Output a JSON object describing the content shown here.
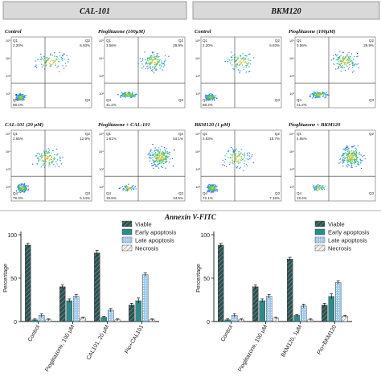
{
  "header": {
    "group1": "CAL-101",
    "group2": "BKM120"
  },
  "flow_panels": [
    {
      "title": "Control",
      "q1": "2.20%",
      "q2": "6.93%",
      "q3": "",
      "q4": "88.4%",
      "density": "viable"
    },
    {
      "title": "Pioglitazone (100μM)",
      "q1": "3.56%",
      "q2": "29.9%",
      "q3": "",
      "q4": "41.2%",
      "density": "mixed"
    },
    {
      "title": "Control",
      "q1": "2.20%",
      "q2": "6.93%",
      "q3": "",
      "q4": "88.4%",
      "density": "viable"
    },
    {
      "title": "Pioglitazone (100μM)",
      "q1": "3.56%",
      "q2": "29.9%",
      "q3": "",
      "q4": "41.2%",
      "density": "mixed"
    },
    {
      "title": "CAL-101 (20 μM)",
      "q1": "2.65%",
      "q2": "12.9%",
      "q3": "5.24%",
      "q4": "79.3%",
      "density": "viable2"
    },
    {
      "title": "Pioglitazone + CAL-101",
      "q1": "1.61%",
      "q2": "54.1%",
      "q3": "24.6%",
      "q4": "19.6%",
      "density": "late"
    },
    {
      "title": "BKM120 (1 μM)",
      "q1": "2.63%",
      "q2": "18.7%",
      "q3": "7.16%",
      "q4": "72.1%",
      "density": "viable2"
    },
    {
      "title": "Pioglitazone + BKM120",
      "q1": "4.65%",
      "q2": "",
      "q3": "",
      "q4": "19.4%",
      "density": "late"
    }
  ],
  "axis_title": "Annexin V-FITC",
  "chart_data": [
    {
      "type": "bar",
      "ylabel": "Percentage",
      "ylim": [
        0,
        100
      ],
      "yticks": [
        "0",
        "50",
        "100"
      ],
      "categories": [
        "Control",
        "Pioglitazone, 100 μM",
        "CAL101, 20 μM",
        "Pio+CAL101"
      ],
      "series": [
        {
          "name": "Viable",
          "color": "#2f4f4f",
          "pattern": "hatch-dark",
          "values": [
            88,
            40,
            79,
            19
          ],
          "errors": [
            2,
            2,
            3,
            2
          ]
        },
        {
          "name": "Early apoptosis",
          "color": "#2e8b8b",
          "pattern": "solid",
          "values": [
            2,
            24,
            5,
            24
          ],
          "errors": [
            1,
            2,
            1,
            3
          ]
        },
        {
          "name": "Late apoptosis",
          "color": "#9ec9ec",
          "pattern": "dots",
          "values": [
            7,
            29,
            13,
            54
          ],
          "errors": [
            2,
            2,
            2,
            2
          ]
        },
        {
          "name": "Necrosis",
          "color": "#dddddd",
          "pattern": "hatch-light",
          "values": [
            2,
            4,
            2,
            2
          ],
          "errors": [
            1,
            1,
            1,
            1
          ]
        }
      ],
      "legend": "top-right"
    },
    {
      "type": "bar",
      "ylabel": "Percentage",
      "ylim": [
        0,
        100
      ],
      "yticks": [
        "0",
        "50",
        "100"
      ],
      "categories": [
        "Control",
        "Pioglitazone, 100 μM",
        "BKM120, 1μM",
        "Pio+BKM120"
      ],
      "series": [
        {
          "name": "Viable",
          "color": "#2f4f4f",
          "pattern": "hatch-dark",
          "values": [
            88,
            40,
            72,
            19
          ],
          "errors": [
            2,
            2,
            2,
            2
          ]
        },
        {
          "name": "Early apoptosis",
          "color": "#2e8b8b",
          "pattern": "solid",
          "values": [
            2,
            24,
            7,
            29
          ],
          "errors": [
            1,
            2,
            1,
            3
          ]
        },
        {
          "name": "Late apoptosis",
          "color": "#9ec9ec",
          "pattern": "dots",
          "values": [
            7,
            29,
            18,
            45
          ],
          "errors": [
            2,
            2,
            2,
            2
          ]
        },
        {
          "name": "Necrosis",
          "color": "#dddddd",
          "pattern": "hatch-light",
          "values": [
            2,
            4,
            2,
            6
          ],
          "errors": [
            1,
            1,
            1,
            1
          ]
        }
      ],
      "legend": "top-right"
    }
  ]
}
